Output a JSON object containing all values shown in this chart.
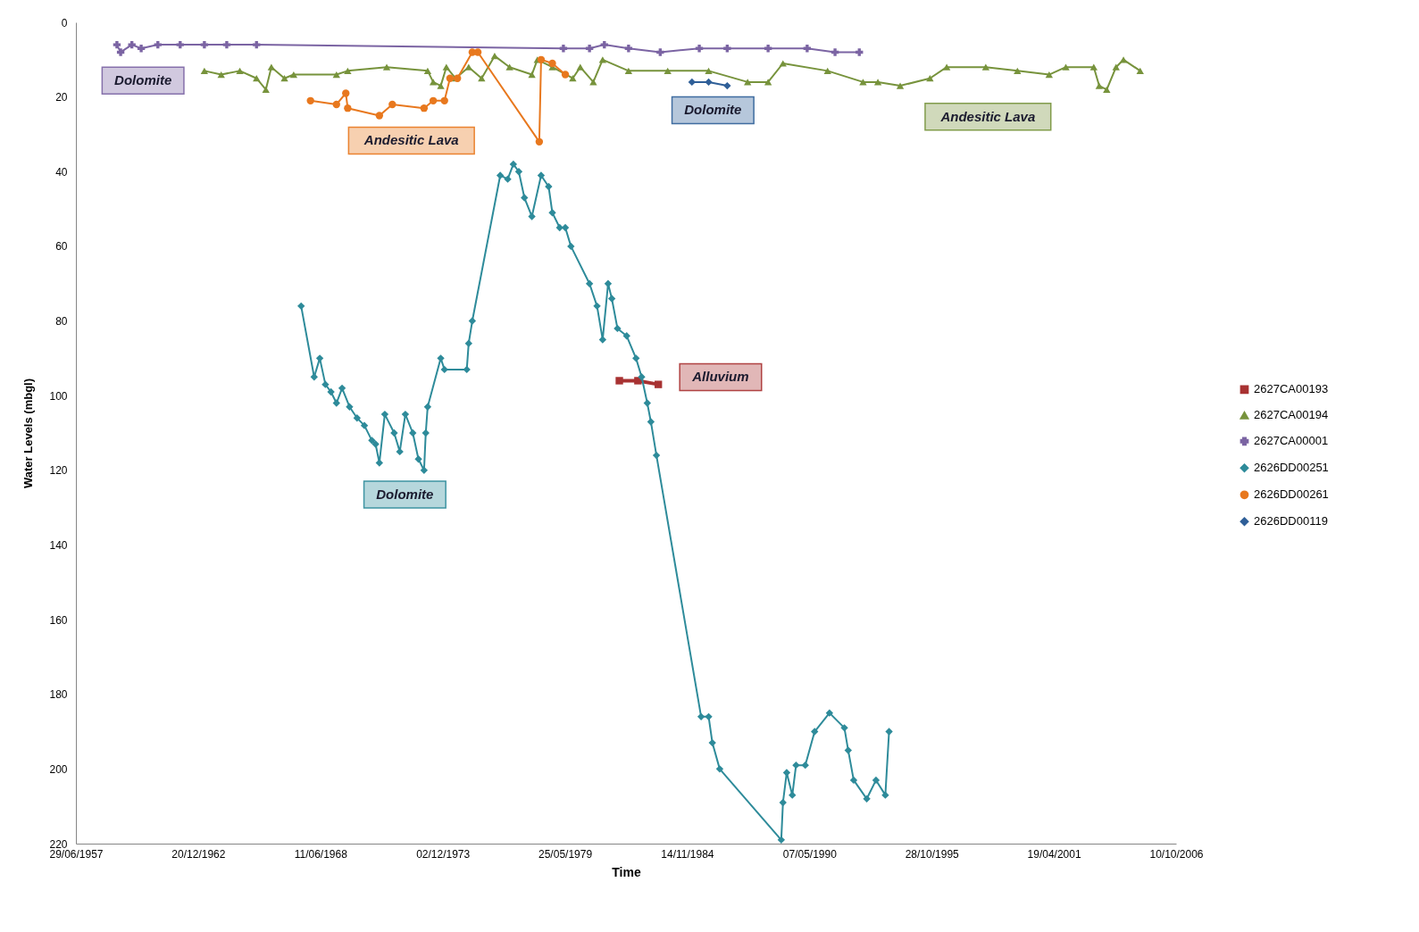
{
  "chart_data": {
    "type": "line",
    "xlabel": "Time",
    "ylabel": "Water Levels (mbgl)",
    "xlim": [
      "1957-06-29",
      "2006-10-10"
    ],
    "xticks": [
      {
        "value": "1957-06-29",
        "label": "29/06/1957"
      },
      {
        "value": "1962-12-20",
        "label": "20/12/1962"
      },
      {
        "value": "1968-06-11",
        "label": "11/06/1968"
      },
      {
        "value": "1973-12-02",
        "label": "02/12/1973"
      },
      {
        "value": "1979-05-25",
        "label": "25/05/1979"
      },
      {
        "value": "1984-11-14",
        "label": "14/11/1984"
      },
      {
        "value": "1990-05-07",
        "label": "07/05/1990"
      },
      {
        "value": "1995-10-28",
        "label": "28/10/1995"
      },
      {
        "value": "2001-04-19",
        "label": "19/04/2001"
      },
      {
        "value": "2006-10-10",
        "label": "10/10/2006"
      }
    ],
    "ylim": [
      220,
      0
    ],
    "yticks": [
      0,
      20,
      40,
      60,
      80,
      100,
      120,
      140,
      160,
      180,
      200,
      220
    ],
    "legend": "right",
    "series": [
      {
        "name": "2627CA00193",
        "color": "#a83232",
        "marker": "square",
        "x": [
          "1981-11",
          "1982-09",
          "1983-08"
        ],
        "values": [
          96,
          96,
          97
        ]
      },
      {
        "name": "2627CA00194",
        "color": "#77933c",
        "marker": "triangle",
        "x": [
          "1963-04",
          "1964-01",
          "1964-11",
          "1965-08",
          "1966-01",
          "1966-04",
          "1966-11",
          "1967-04",
          "1969-03",
          "1969-09",
          "1971-06",
          "1973-04",
          "1973-07",
          "1973-11",
          "1974-02",
          "1974-07",
          "1975-02",
          "1975-09",
          "1976-04",
          "1976-12",
          "1977-12",
          "1978-03",
          "1978-11",
          "1979-10",
          "1980-02",
          "1980-09",
          "1981-02",
          "1982-04",
          "1984-01",
          "1985-11",
          "1987-08",
          "1988-07",
          "1989-03",
          "1991-03",
          "1992-10",
          "1993-06",
          "1994-06",
          "1995-10",
          "1996-07",
          "1998-04",
          "1999-09",
          "2001-02",
          "2001-11",
          "2003-02",
          "2003-05",
          "2003-09",
          "2004-02",
          "2004-06",
          "2005-03"
        ],
        "values": [
          13,
          14,
          13,
          15,
          18,
          12,
          15,
          14,
          14,
          13,
          12,
          13,
          16,
          17,
          12,
          15,
          12,
          15,
          9,
          12,
          14,
          10,
          12,
          15,
          12,
          16,
          10,
          13,
          13,
          13,
          16,
          16,
          11,
          13,
          16,
          16,
          17,
          15,
          12,
          12,
          13,
          14,
          12,
          12,
          17,
          18,
          12,
          10,
          13
        ]
      },
      {
        "name": "2627CA00001",
        "color": "#7b64a3",
        "marker": "cross",
        "x": [
          "1959-05",
          "1959-07",
          "1960-01",
          "1960-06",
          "1961-03",
          "1962-03",
          "1963-04",
          "1964-04",
          "1965-08",
          "1979-05",
          "1980-07",
          "1981-03",
          "1982-04",
          "1983-09",
          "1985-06",
          "1986-09",
          "1988-07",
          "1990-04",
          "1991-07",
          "1992-08"
        ],
        "values": [
          6,
          8,
          6,
          7,
          6,
          6,
          6,
          6,
          6,
          7,
          7,
          6,
          7,
          8,
          7,
          7,
          7,
          7,
          8,
          8
        ]
      },
      {
        "name": "2626DD00251",
        "color": "#2e8b9a",
        "marker": "diamond",
        "x": [
          "1967-08",
          "1968-03",
          "1968-06",
          "1968-09",
          "1968-12",
          "1969-03",
          "1969-06",
          "1969-10",
          "1970-02",
          "1970-06",
          "1970-10",
          "1970-12",
          "1971-02",
          "1971-05",
          "1971-10",
          "1972-01",
          "1972-04",
          "1972-08",
          "1972-11",
          "1973-02",
          "1973-03",
          "1973-04",
          "1973-11",
          "1974-01",
          "1975-01",
          "1975-02",
          "1975-04",
          "1976-07",
          "1976-11",
          "1977-02",
          "1977-05",
          "1977-08",
          "1977-12",
          "1978-05",
          "1978-09",
          "1978-11",
          "1979-03",
          "1979-06",
          "1979-09",
          "1980-07",
          "1980-11",
          "1981-02",
          "1981-05",
          "1981-07",
          "1981-10",
          "1982-03",
          "1982-08",
          "1982-11",
          "1983-02",
          "1983-04",
          "1983-07",
          "1985-07",
          "1985-11",
          "1986-01",
          "1986-05",
          "1989-02",
          "1989-03",
          "1989-05",
          "1989-08",
          "1989-10",
          "1990-03",
          "1990-08",
          "1991-04",
          "1991-12",
          "1992-02",
          "1992-05",
          "1992-12",
          "1993-05",
          "1993-10",
          "1993-12"
        ],
        "values": [
          76,
          95,
          90,
          97,
          99,
          102,
          98,
          103,
          106,
          108,
          112,
          113,
          118,
          105,
          110,
          115,
          105,
          110,
          117,
          120,
          110,
          103,
          90,
          93,
          93,
          86,
          80,
          41,
          42,
          38,
          40,
          47,
          52,
          41,
          44,
          51,
          55,
          55,
          60,
          70,
          76,
          85,
          70,
          74,
          82,
          84,
          90,
          95,
          102,
          107,
          116,
          186,
          186,
          193,
          200,
          219,
          209,
          201,
          207,
          199,
          199,
          190,
          185,
          189,
          195,
          203,
          208,
          203,
          207,
          190
        ]
      },
      {
        "name": "2626DD00261",
        "color": "#e8781e",
        "marker": "circle",
        "x": [
          "1968-01",
          "1969-03",
          "1969-08",
          "1969-09",
          "1971-02",
          "1971-09",
          "1973-02",
          "1973-07",
          "1974-01",
          "1974-04",
          "1974-08",
          "1975-04",
          "1975-07",
          "1978-04",
          "1978-05",
          "1978-11",
          "1979-06"
        ],
        "values": [
          21,
          22,
          19,
          23,
          25,
          22,
          23,
          21,
          21,
          15,
          15,
          8,
          8,
          32,
          10,
          11,
          14
        ]
      },
      {
        "name": "2626DD00119",
        "color": "#2f5f98",
        "marker": "diamond",
        "x": [
          "1985-02",
          "1985-11",
          "1986-09"
        ],
        "values": [
          16,
          16,
          17
        ]
      }
    ],
    "annotations": [
      "Alluvium",
      "Andesitic Lava",
      "Dolomite",
      "Dolomite",
      "Andesitic Lava",
      "Dolomite"
    ]
  }
}
